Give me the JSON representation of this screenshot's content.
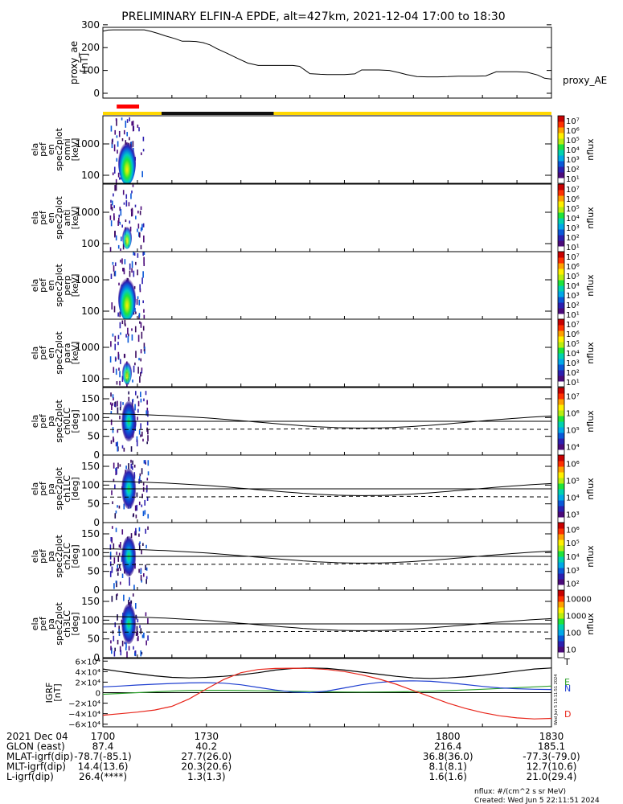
{
  "title": "PRELIMINARY ELFIN-A EPDE, alt=427km, 2021-12-04 17:00 to 18:30",
  "colors": {
    "status_bar": "#ffd700",
    "status_dark": "#111111",
    "status_red": "#ff0000",
    "ae_line": "#000000",
    "grf_t": "#000000",
    "grf_e": "#2ca02c",
    "grf_n": "#1f3fd0",
    "grf_d": "#e8261b"
  },
  "colorbar_stops": [
    "#ffffff",
    "#4b0a7a",
    "#2c1fb0",
    "#0a58d8",
    "#00a8e8",
    "#00d2b0",
    "#1ee43c",
    "#b8ee10",
    "#fff000",
    "#ffa000",
    "#ff3000",
    "#c80000"
  ],
  "chart_data": [
    {
      "id": "proxy_ae",
      "type": "line",
      "ylabel": "proxy_ae [nT]",
      "series_label": "proxy_AE",
      "yticks": [
        "0",
        "100",
        "200",
        "300"
      ],
      "ylim": [
        0,
        310
      ],
      "x": [
        1700,
        1701.5,
        1703,
        1705,
        1707,
        1709,
        1712,
        1714,
        1716,
        1718,
        1721,
        1723,
        1725,
        1727,
        1729,
        1731,
        1733,
        1736,
        1739,
        1742,
        1745,
        1747,
        1749,
        1752,
        1755,
        1757,
        1760,
        1763,
        1765,
        1767,
        1770,
        1773,
        1775,
        1778,
        1780,
        1783,
        1786,
        1788,
        1791,
        1794,
        1797,
        1800,
        1803,
        1805,
        1808,
        1811,
        1814,
        1817,
        1820,
        1823,
        1826,
        1828,
        1830
      ],
      "y": [
        272,
        277,
        278,
        278,
        278,
        278,
        278,
        271,
        262,
        252,
        239,
        228,
        228,
        227,
        222,
        212,
        196,
        175,
        153,
        132,
        122,
        122,
        122,
        122,
        122,
        118,
        86,
        83,
        82,
        82,
        82,
        85,
        102,
        102,
        102,
        100,
        90,
        82,
        73,
        72,
        72,
        73,
        75,
        75,
        75,
        76,
        94,
        94,
        94,
        92,
        80,
        66,
        62
      ]
    },
    {
      "id": "status_bar",
      "type": "other",
      "segments": [
        {
          "from": 1700,
          "to": 1717,
          "color": "yellow"
        },
        {
          "from": 1717,
          "to": 1749.5,
          "color": "black"
        },
        {
          "from": 1749.5,
          "to": 1830,
          "color": "yellow"
        }
      ],
      "marker": {
        "from": 1704,
        "to": 1710.5,
        "color": "red"
      }
    },
    {
      "id": "spec_omni",
      "type": "heatmap",
      "ylabel": [
        "ela",
        "pef",
        "en",
        "spec2plot",
        "omni",
        "[keV]"
      ],
      "yscale": "log",
      "yticks": [
        "100",
        "1000"
      ],
      "cbar_label": "nflux",
      "cbar_ticks": [
        "10¹",
        "10²",
        "10³",
        "10⁴",
        "10⁵",
        "10⁶",
        "10⁷"
      ]
    },
    {
      "id": "spec_anti",
      "type": "heatmap",
      "ylabel": [
        "ela",
        "pef",
        "en",
        "spec2plot",
        "anti",
        "[keV]"
      ],
      "yscale": "log",
      "yticks": [
        "100",
        "1000"
      ],
      "cbar_label": "nflux",
      "cbar_ticks": [
        "10¹",
        "10²",
        "10³",
        "10⁴",
        "10⁵",
        "10⁶",
        "10⁷"
      ]
    },
    {
      "id": "spec_perp",
      "type": "heatmap",
      "ylabel": [
        "ela",
        "pef",
        "en",
        "spec2plot",
        "perp",
        "[keV]"
      ],
      "yscale": "log",
      "yticks": [
        "100",
        "1000"
      ],
      "cbar_label": "nflux",
      "cbar_ticks": [
        "10¹",
        "10²",
        "10³",
        "10⁴",
        "10⁵",
        "10⁶",
        "10⁷"
      ]
    },
    {
      "id": "spec_para",
      "type": "heatmap",
      "ylabel": [
        "ela",
        "pef",
        "en",
        "spec2plot",
        "para",
        "[keV]"
      ],
      "yscale": "log",
      "yticks": [
        "100",
        "1000"
      ],
      "cbar_label": "nflux",
      "cbar_ticks": [
        "10¹",
        "10²",
        "10³",
        "10⁴",
        "10⁵",
        "10⁶",
        "10⁷"
      ]
    },
    {
      "id": "pa_ch0",
      "type": "heatmap",
      "ylabel": [
        "ela",
        "pef",
        "pa",
        "spec2plot",
        "ch0LC",
        "[deg]"
      ],
      "yticks": [
        "0",
        "50",
        "100",
        "150"
      ],
      "ylim": [
        0,
        180
      ],
      "cbar_label": "nflux",
      "cbar_ticks": [
        "10⁴",
        "10⁵",
        "10⁶",
        "10⁷"
      ]
    },
    {
      "id": "pa_ch1",
      "type": "heatmap",
      "ylabel": [
        "ela",
        "pef",
        "pa",
        "spec2plot",
        "ch1LC",
        "[deg]"
      ],
      "yticks": [
        "0",
        "50",
        "100",
        "150"
      ],
      "ylim": [
        0,
        180
      ],
      "cbar_label": "nflux",
      "cbar_ticks": [
        "10³",
        "10⁴",
        "10⁵",
        "10⁶"
      ]
    },
    {
      "id": "pa_ch2",
      "type": "heatmap",
      "ylabel": [
        "ela",
        "pef",
        "pa",
        "spec2plot",
        "ch2LC",
        "[deg]"
      ],
      "yticks": [
        "0",
        "50",
        "100",
        "150"
      ],
      "ylim": [
        0,
        180
      ],
      "cbar_label": "nflux",
      "cbar_ticks": [
        "10²",
        "10³",
        "10⁴",
        "10⁵",
        "10⁶"
      ]
    },
    {
      "id": "pa_ch3",
      "type": "heatmap",
      "ylabel": [
        "ela",
        "pef",
        "pa",
        "spec2plot",
        "ch3LC",
        "[deg]"
      ],
      "yticks": [
        "0",
        "50",
        "100",
        "150"
      ],
      "ylim": [
        0,
        180
      ],
      "cbar_label": "nflux",
      "cbar_ticks": [
        "10",
        "100",
        "1000",
        "10000"
      ]
    },
    {
      "id": "igrf",
      "type": "line",
      "ylabel": [
        "IGRF",
        "[nT]"
      ],
      "yticks": [
        "−6×10⁴",
        "−4×10⁴",
        "−2×10⁴",
        "0",
        "2×10⁴",
        "4×10⁴",
        "6×10⁴"
      ],
      "ylim": [
        -65000,
        65000
      ],
      "series": [
        {
          "name": "T",
          "x": [
            1700,
            1705,
            1710,
            1715,
            1720,
            1725,
            1730,
            1735,
            1740,
            1745,
            1750,
            1755,
            1760,
            1765,
            1770,
            1775,
            1780,
            1785,
            1790,
            1795,
            1800,
            1805,
            1810,
            1815,
            1820,
            1825,
            1830
          ],
          "y": [
            45000,
            40000,
            36000,
            32000,
            29000,
            28000,
            29000,
            31000,
            34000,
            38000,
            43000,
            46000,
            47000,
            46000,
            43000,
            39000,
            35000,
            31000,
            28000,
            27000,
            28000,
            30000,
            33000,
            37000,
            41000,
            45000,
            47000
          ]
        },
        {
          "name": "E",
          "x": [
            1700,
            1705,
            1710,
            1715,
            1720,
            1725,
            1730,
            1735,
            1740,
            1745,
            1750,
            1755,
            1760,
            1765,
            1770,
            1775,
            1780,
            1785,
            1790,
            1795,
            1800,
            1805,
            1810,
            1815,
            1820,
            1825,
            1830
          ],
          "y": [
            -3000,
            -1500,
            0,
            1500,
            3000,
            4000,
            4500,
            4500,
            4000,
            3500,
            3000,
            2500,
            2000,
            1500,
            1200,
            1100,
            1200,
            1500,
            2000,
            2800,
            3800,
            5000,
            6500,
            8000,
            9500,
            11000,
            12500
          ]
        },
        {
          "name": "N",
          "x": [
            1700,
            1705,
            1710,
            1715,
            1720,
            1725,
            1730,
            1735,
            1740,
            1745,
            1750,
            1755,
            1760,
            1765,
            1770,
            1775,
            1780,
            1785,
            1790,
            1795,
            1800,
            1805,
            1810,
            1815,
            1820,
            1825,
            1830
          ],
          "y": [
            11000,
            12500,
            14500,
            16000,
            17500,
            18500,
            19000,
            18000,
            15000,
            10000,
            5000,
            1000,
            0,
            3000,
            9000,
            15000,
            19500,
            22000,
            22500,
            21500,
            19000,
            15500,
            12000,
            9000,
            7500,
            6500,
            6000
          ]
        },
        {
          "name": "D",
          "x": [
            1700,
            1705,
            1710,
            1715,
            1720,
            1725,
            1730,
            1735,
            1740,
            1745,
            1750,
            1755,
            1760,
            1765,
            1770,
            1775,
            1780,
            1785,
            1790,
            1795,
            1800,
            1805,
            1810,
            1815,
            1820,
            1825,
            1830
          ],
          "y": [
            -43000,
            -40000,
            -37000,
            -33000,
            -26000,
            -12000,
            7000,
            25000,
            38000,
            44000,
            46000,
            46500,
            46000,
            44000,
            40000,
            34000,
            26000,
            16000,
            4000,
            -8000,
            -20000,
            -30000,
            -38000,
            -44000,
            -48000,
            -50000,
            -49000
          ]
        }
      ]
    }
  ],
  "ephemeris": {
    "rows": [
      {
        "label": "2021 Dec 04",
        "values": [
          "1700",
          "1730",
          "1800",
          "1830"
        ]
      },
      {
        "label": "GLON (east)",
        "values": [
          "87.4",
          "40.2",
          "216.4",
          "185.1"
        ]
      },
      {
        "label": "MLAT-igrf(dip)",
        "values": [
          "-78.7(-85.1)",
          "27.7(26.0)",
          "36.8(36.0)",
          "-77.3(-79.0)"
        ]
      },
      {
        "label": "MLT-igrf(dip)",
        "values": [
          "14.4(13.6)",
          "20.3(20.6)",
          "8.1(8.1)",
          "12.7(10.6)"
        ]
      },
      {
        "label": "L-igrf(dip)",
        "values": [
          "26.4(****)",
          "1.3(1.3)",
          "1.6(1.6)",
          "21.0(29.4)"
        ]
      }
    ]
  },
  "footer": {
    "units": "nflux: #/(cm^2 s sr MeV)",
    "created": "Created: Wed Jun  5 22:11:51 2024",
    "stamp": "Wed Jun  5 15:11:51 2024"
  }
}
